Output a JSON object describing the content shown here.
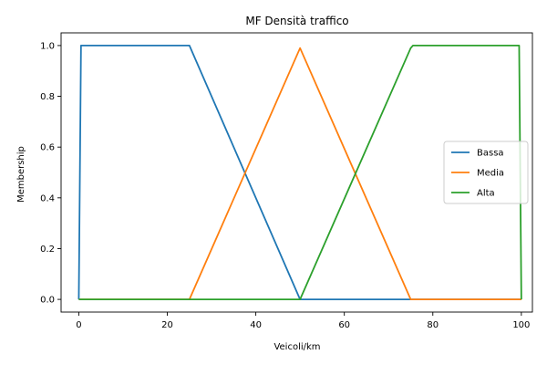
{
  "chart_data": {
    "type": "line",
    "title": "MF Densità traffico",
    "xlabel": "Veicoli/km",
    "ylabel": "Membership",
    "xlim": [
      -4,
      102.5
    ],
    "ylim": [
      -0.05,
      1.05
    ],
    "xticks": [
      0,
      20,
      40,
      60,
      80,
      100
    ],
    "xtick_labels": [
      "0",
      "20",
      "40",
      "60",
      "80",
      "100"
    ],
    "yticks": [
      0.0,
      0.2,
      0.4,
      0.6,
      0.8,
      1.0
    ],
    "ytick_labels": [
      "0.0",
      "0.2",
      "0.4",
      "0.6",
      "0.8",
      "1.0"
    ],
    "grid": false,
    "legend_position": "right",
    "series": [
      {
        "name": "Bassa",
        "color": "#1f77b4",
        "points": [
          [
            0,
            0
          ],
          [
            0.5,
            1
          ],
          [
            25,
            1
          ],
          [
            25.5,
            0.98
          ],
          [
            50,
            0
          ],
          [
            100,
            0
          ]
        ]
      },
      {
        "name": "Media",
        "color": "#ff7f0e",
        "points": [
          [
            0,
            0
          ],
          [
            25,
            0
          ],
          [
            50,
            0.99
          ],
          [
            75,
            0
          ],
          [
            100,
            0
          ]
        ]
      },
      {
        "name": "Alta",
        "color": "#2ca02c",
        "points": [
          [
            0,
            0
          ],
          [
            50,
            0
          ],
          [
            75,
            0.99
          ],
          [
            75.5,
            1
          ],
          [
            99.5,
            1
          ],
          [
            100,
            0
          ]
        ]
      }
    ]
  }
}
